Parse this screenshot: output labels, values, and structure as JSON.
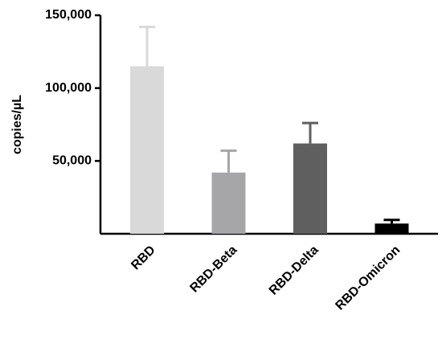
{
  "chart_data": {
    "type": "bar",
    "y_label": "copies/µL",
    "categories": [
      "RBD",
      "RBD-Beta",
      "RBD-Delta",
      "RBD-Omicron"
    ],
    "values": [
      115000,
      42000,
      62000,
      7000
    ],
    "errors": [
      27000,
      15000,
      14000,
      2500
    ],
    "colors": [
      "#d9d9d9",
      "#a6a6a8",
      "#5f5f5f",
      "#000000"
    ],
    "ylim": [
      0,
      150000
    ],
    "yticks": [
      {
        "value": 50000,
        "label": "50,000"
      },
      {
        "value": 100000,
        "label": "100,000"
      },
      {
        "value": 150000,
        "label": "150,000"
      }
    ]
  }
}
